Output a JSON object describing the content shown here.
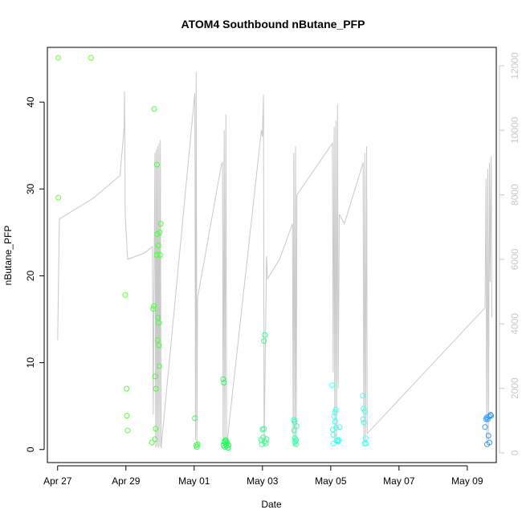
{
  "chart_data": {
    "type": "scatter",
    "title": "ATOM4 Southbound nButane_PFP",
    "xlabel": "Date",
    "ylabel": "nButane_PFP",
    "x_ticks": [
      "Apr 27",
      "Apr 29",
      "May 01",
      "May 03",
      "May 05",
      "May 07",
      "May 09"
    ],
    "x_tick_days": [
      0,
      2,
      4,
      6,
      8,
      10,
      12
    ],
    "xlim": [
      -0.3,
      12.85
    ],
    "ylim": [
      -1.5,
      46.3
    ],
    "y_ticks": [
      0,
      10,
      20,
      30,
      40
    ],
    "y2lim": [
      -300,
      12570
    ],
    "y2_ticks": [
      0,
      2000,
      4000,
      6000,
      8000,
      10000,
      12000
    ],
    "colors": {
      "grey_line": "#c8c8c8"
    },
    "points": [
      {
        "x": 0.02,
        "y": 45.1,
        "c": "#66ff33"
      },
      {
        "x": 0.02,
        "y": 29.0,
        "c": "#66ff33"
      },
      {
        "x": 0.98,
        "y": 45.1,
        "c": "#66ff33"
      },
      {
        "x": 1.98,
        "y": 17.8,
        "c": "#55ff33"
      },
      {
        "x": 2.02,
        "y": 7.0,
        "c": "#55ff33"
      },
      {
        "x": 2.03,
        "y": 3.9,
        "c": "#55ff33"
      },
      {
        "x": 2.05,
        "y": 2.2,
        "c": "#55ff33"
      },
      {
        "x": 2.76,
        "y": 0.8,
        "c": "#44ff33"
      },
      {
        "x": 2.8,
        "y": 16.2,
        "c": "#44ff33"
      },
      {
        "x": 2.82,
        "y": 16.5,
        "c": "#44ff33"
      },
      {
        "x": 2.83,
        "y": 39.2,
        "c": "#44ff33"
      },
      {
        "x": 2.85,
        "y": 1.2,
        "c": "#44ff33"
      },
      {
        "x": 2.86,
        "y": 8.4,
        "c": "#44ff33"
      },
      {
        "x": 2.87,
        "y": 2.4,
        "c": "#44ff33"
      },
      {
        "x": 2.88,
        "y": 7.0,
        "c": "#44ff33"
      },
      {
        "x": 2.9,
        "y": 22.4,
        "c": "#44ff33"
      },
      {
        "x": 2.91,
        "y": 32.8,
        "c": "#44ff33"
      },
      {
        "x": 2.92,
        "y": 24.8,
        "c": "#44ff33"
      },
      {
        "x": 2.93,
        "y": 12.6,
        "c": "#44ff33"
      },
      {
        "x": 2.94,
        "y": 15.2,
        "c": "#44ff33"
      },
      {
        "x": 2.95,
        "y": 23.5,
        "c": "#44ff33"
      },
      {
        "x": 2.96,
        "y": 14.6,
        "c": "#44ff33"
      },
      {
        "x": 2.97,
        "y": 12.0,
        "c": "#44ff33"
      },
      {
        "x": 2.98,
        "y": 9.6,
        "c": "#44ff33"
      },
      {
        "x": 2.99,
        "y": 25.0,
        "c": "#44ff33"
      },
      {
        "x": 3.0,
        "y": 22.4,
        "c": "#44ff33"
      },
      {
        "x": 3.02,
        "y": 26.0,
        "c": "#44ff33"
      },
      {
        "x": 4.02,
        "y": 3.6,
        "c": "#33ff44"
      },
      {
        "x": 4.06,
        "y": 0.5,
        "c": "#33ff44"
      },
      {
        "x": 4.08,
        "y": 0.3,
        "c": "#33ff44"
      },
      {
        "x": 4.1,
        "y": 0.6,
        "c": "#33ff44"
      },
      {
        "x": 4.85,
        "y": 8.1,
        "c": "#22ff55"
      },
      {
        "x": 4.87,
        "y": 7.7,
        "c": "#22ff55"
      },
      {
        "x": 4.86,
        "y": 0.5,
        "c": "#22ff55"
      },
      {
        "x": 4.88,
        "y": 0.9,
        "c": "#22ff55"
      },
      {
        "x": 4.9,
        "y": 0.3,
        "c": "#22ff55"
      },
      {
        "x": 4.92,
        "y": 1.1,
        "c": "#22ff55"
      },
      {
        "x": 4.93,
        "y": 0.6,
        "c": "#22ff55"
      },
      {
        "x": 4.95,
        "y": 0.4,
        "c": "#22ff55"
      },
      {
        "x": 4.97,
        "y": 0.8,
        "c": "#22ff55"
      },
      {
        "x": 4.99,
        "y": 0.2,
        "c": "#22ff55"
      },
      {
        "x": 5.01,
        "y": 0.5,
        "c": "#22ff55"
      },
      {
        "x": 4.94,
        "y": 1.0,
        "c": "#22ff55"
      },
      {
        "x": 5.96,
        "y": 1.1,
        "c": "#33ff88"
      },
      {
        "x": 5.98,
        "y": 0.6,
        "c": "#33ff88"
      },
      {
        "x": 6.0,
        "y": 2.3,
        "c": "#33ff88"
      },
      {
        "x": 6.02,
        "y": 1.4,
        "c": "#33ff88"
      },
      {
        "x": 6.04,
        "y": 2.4,
        "c": "#33ff88"
      },
      {
        "x": 6.06,
        "y": 0.9,
        "c": "#33ff88"
      },
      {
        "x": 6.1,
        "y": 0.7,
        "c": "#33ff88"
      },
      {
        "x": 6.12,
        "y": 1.2,
        "c": "#33ff88"
      },
      {
        "x": 6.04,
        "y": 12.5,
        "c": "#33ff88"
      },
      {
        "x": 6.07,
        "y": 13.2,
        "c": "#33ff88"
      },
      {
        "x": 6.92,
        "y": 3.4,
        "c": "#33ffaa"
      },
      {
        "x": 6.94,
        "y": 3.2,
        "c": "#33ffaa"
      },
      {
        "x": 6.93,
        "y": 2.2,
        "c": "#33ffaa"
      },
      {
        "x": 6.95,
        "y": 1.3,
        "c": "#33ffaa"
      },
      {
        "x": 6.96,
        "y": 0.9,
        "c": "#33ffaa"
      },
      {
        "x": 6.98,
        "y": 1.1,
        "c": "#33ffaa"
      },
      {
        "x": 6.99,
        "y": 0.6,
        "c": "#33ffaa"
      },
      {
        "x": 7.0,
        "y": 2.7,
        "c": "#33ffaa"
      },
      {
        "x": 8.04,
        "y": 7.4,
        "c": "#44ffee"
      },
      {
        "x": 8.06,
        "y": 2.3,
        "c": "#44ffee"
      },
      {
        "x": 8.07,
        "y": 1.7,
        "c": "#44ffee"
      },
      {
        "x": 8.08,
        "y": 0.7,
        "c": "#44ffee"
      },
      {
        "x": 8.1,
        "y": 3.8,
        "c": "#44ffee"
      },
      {
        "x": 8.12,
        "y": 4.3,
        "c": "#44ffee"
      },
      {
        "x": 8.13,
        "y": 3.2,
        "c": "#44ffee"
      },
      {
        "x": 8.15,
        "y": 4.6,
        "c": "#44ffee"
      },
      {
        "x": 8.16,
        "y": 2.5,
        "c": "#44ffee"
      },
      {
        "x": 8.18,
        "y": 1.0,
        "c": "#44ffee"
      },
      {
        "x": 8.2,
        "y": 1.1,
        "c": "#44ffee"
      },
      {
        "x": 8.22,
        "y": 0.9,
        "c": "#44ffee"
      },
      {
        "x": 8.24,
        "y": 1.1,
        "c": "#44ffee"
      },
      {
        "x": 8.26,
        "y": 2.6,
        "c": "#44ffee"
      },
      {
        "x": 8.94,
        "y": 6.2,
        "c": "#44ffee"
      },
      {
        "x": 8.96,
        "y": 4.7,
        "c": "#44ffee"
      },
      {
        "x": 8.95,
        "y": 3.5,
        "c": "#44ffee"
      },
      {
        "x": 8.97,
        "y": 3.1,
        "c": "#44ffee"
      },
      {
        "x": 9.0,
        "y": 4.4,
        "c": "#44ffee"
      },
      {
        "x": 9.02,
        "y": 1.3,
        "c": "#44ffee"
      },
      {
        "x": 8.99,
        "y": 0.7,
        "c": "#44ffee"
      },
      {
        "x": 9.03,
        "y": 0.7,
        "c": "#44ffee"
      },
      {
        "x": 12.52,
        "y": 2.6,
        "c": "#3399ee"
      },
      {
        "x": 12.55,
        "y": 3.5,
        "c": "#3399ee"
      },
      {
        "x": 12.57,
        "y": 3.7,
        "c": "#3399ee"
      },
      {
        "x": 12.6,
        "y": 3.5,
        "c": "#3399ee"
      },
      {
        "x": 12.62,
        "y": 1.6,
        "c": "#3399ee"
      },
      {
        "x": 12.58,
        "y": 0.6,
        "c": "#3399ee"
      },
      {
        "x": 12.65,
        "y": 0.8,
        "c": "#3399ee"
      },
      {
        "x": 12.68,
        "y": 4.0,
        "c": "#3399ee"
      },
      {
        "x": 12.7,
        "y": 3.9,
        "c": "#3399ee"
      },
      {
        "x": 12.64,
        "y": 3.8,
        "c": "#3399ee"
      }
    ],
    "grey_line": [
      [
        0.0,
        3500
      ],
      [
        0.05,
        7250
      ],
      [
        1.05,
        7900
      ],
      [
        1.83,
        8600
      ],
      [
        1.95,
        10100
      ],
      [
        1.96,
        11200
      ],
      [
        1.98,
        7400
      ],
      [
        2.05,
        6000
      ],
      [
        2.55,
        6200
      ],
      [
        2.78,
        6400
      ],
      [
        2.8,
        1200
      ],
      [
        2.85,
        9300
      ],
      [
        2.87,
        150
      ],
      [
        2.89,
        9400
      ],
      [
        2.91,
        200
      ],
      [
        2.93,
        9500
      ],
      [
        2.95,
        150
      ],
      [
        2.97,
        9600
      ],
      [
        2.99,
        200
      ],
      [
        3.01,
        9700
      ],
      [
        3.03,
        150
      ],
      [
        4.02,
        11150
      ],
      [
        4.04,
        400
      ],
      [
        4.06,
        11800
      ],
      [
        4.08,
        150
      ],
      [
        4.1,
        4800
      ],
      [
        4.8,
        8950
      ],
      [
        4.83,
        9000
      ],
      [
        4.85,
        300
      ],
      [
        4.88,
        10000
      ],
      [
        4.9,
        150
      ],
      [
        4.93,
        10500
      ],
      [
        4.95,
        200
      ],
      [
        5.97,
        10000
      ],
      [
        6.0,
        9800
      ],
      [
        6.03,
        11100
      ],
      [
        6.05,
        200
      ],
      [
        6.12,
        6100
      ],
      [
        6.15,
        5400
      ],
      [
        6.5,
        6000
      ],
      [
        6.88,
        7100
      ],
      [
        6.9,
        200
      ],
      [
        6.92,
        9300
      ],
      [
        6.95,
        200
      ],
      [
        6.97,
        9500
      ],
      [
        6.99,
        200
      ],
      [
        7.01,
        8000
      ],
      [
        8.05,
        9600
      ],
      [
        8.07,
        2500
      ],
      [
        8.1,
        10100
      ],
      [
        8.12,
        300
      ],
      [
        8.15,
        10300
      ],
      [
        8.17,
        300
      ],
      [
        8.2,
        10800
      ],
      [
        8.22,
        2000
      ],
      [
        8.25,
        7400
      ],
      [
        8.4,
        7100
      ],
      [
        8.95,
        9000
      ],
      [
        8.97,
        200
      ],
      [
        9.0,
        9300
      ],
      [
        9.02,
        300
      ],
      [
        9.05,
        9500
      ],
      [
        9.07,
        600
      ],
      [
        12.52,
        4500
      ],
      [
        12.55,
        8500
      ],
      [
        12.57,
        300
      ],
      [
        12.6,
        8800
      ],
      [
        12.62,
        400
      ],
      [
        12.65,
        9000
      ],
      [
        12.67,
        5300
      ],
      [
        12.7,
        9200
      ],
      [
        12.72,
        4200
      ]
    ]
  }
}
